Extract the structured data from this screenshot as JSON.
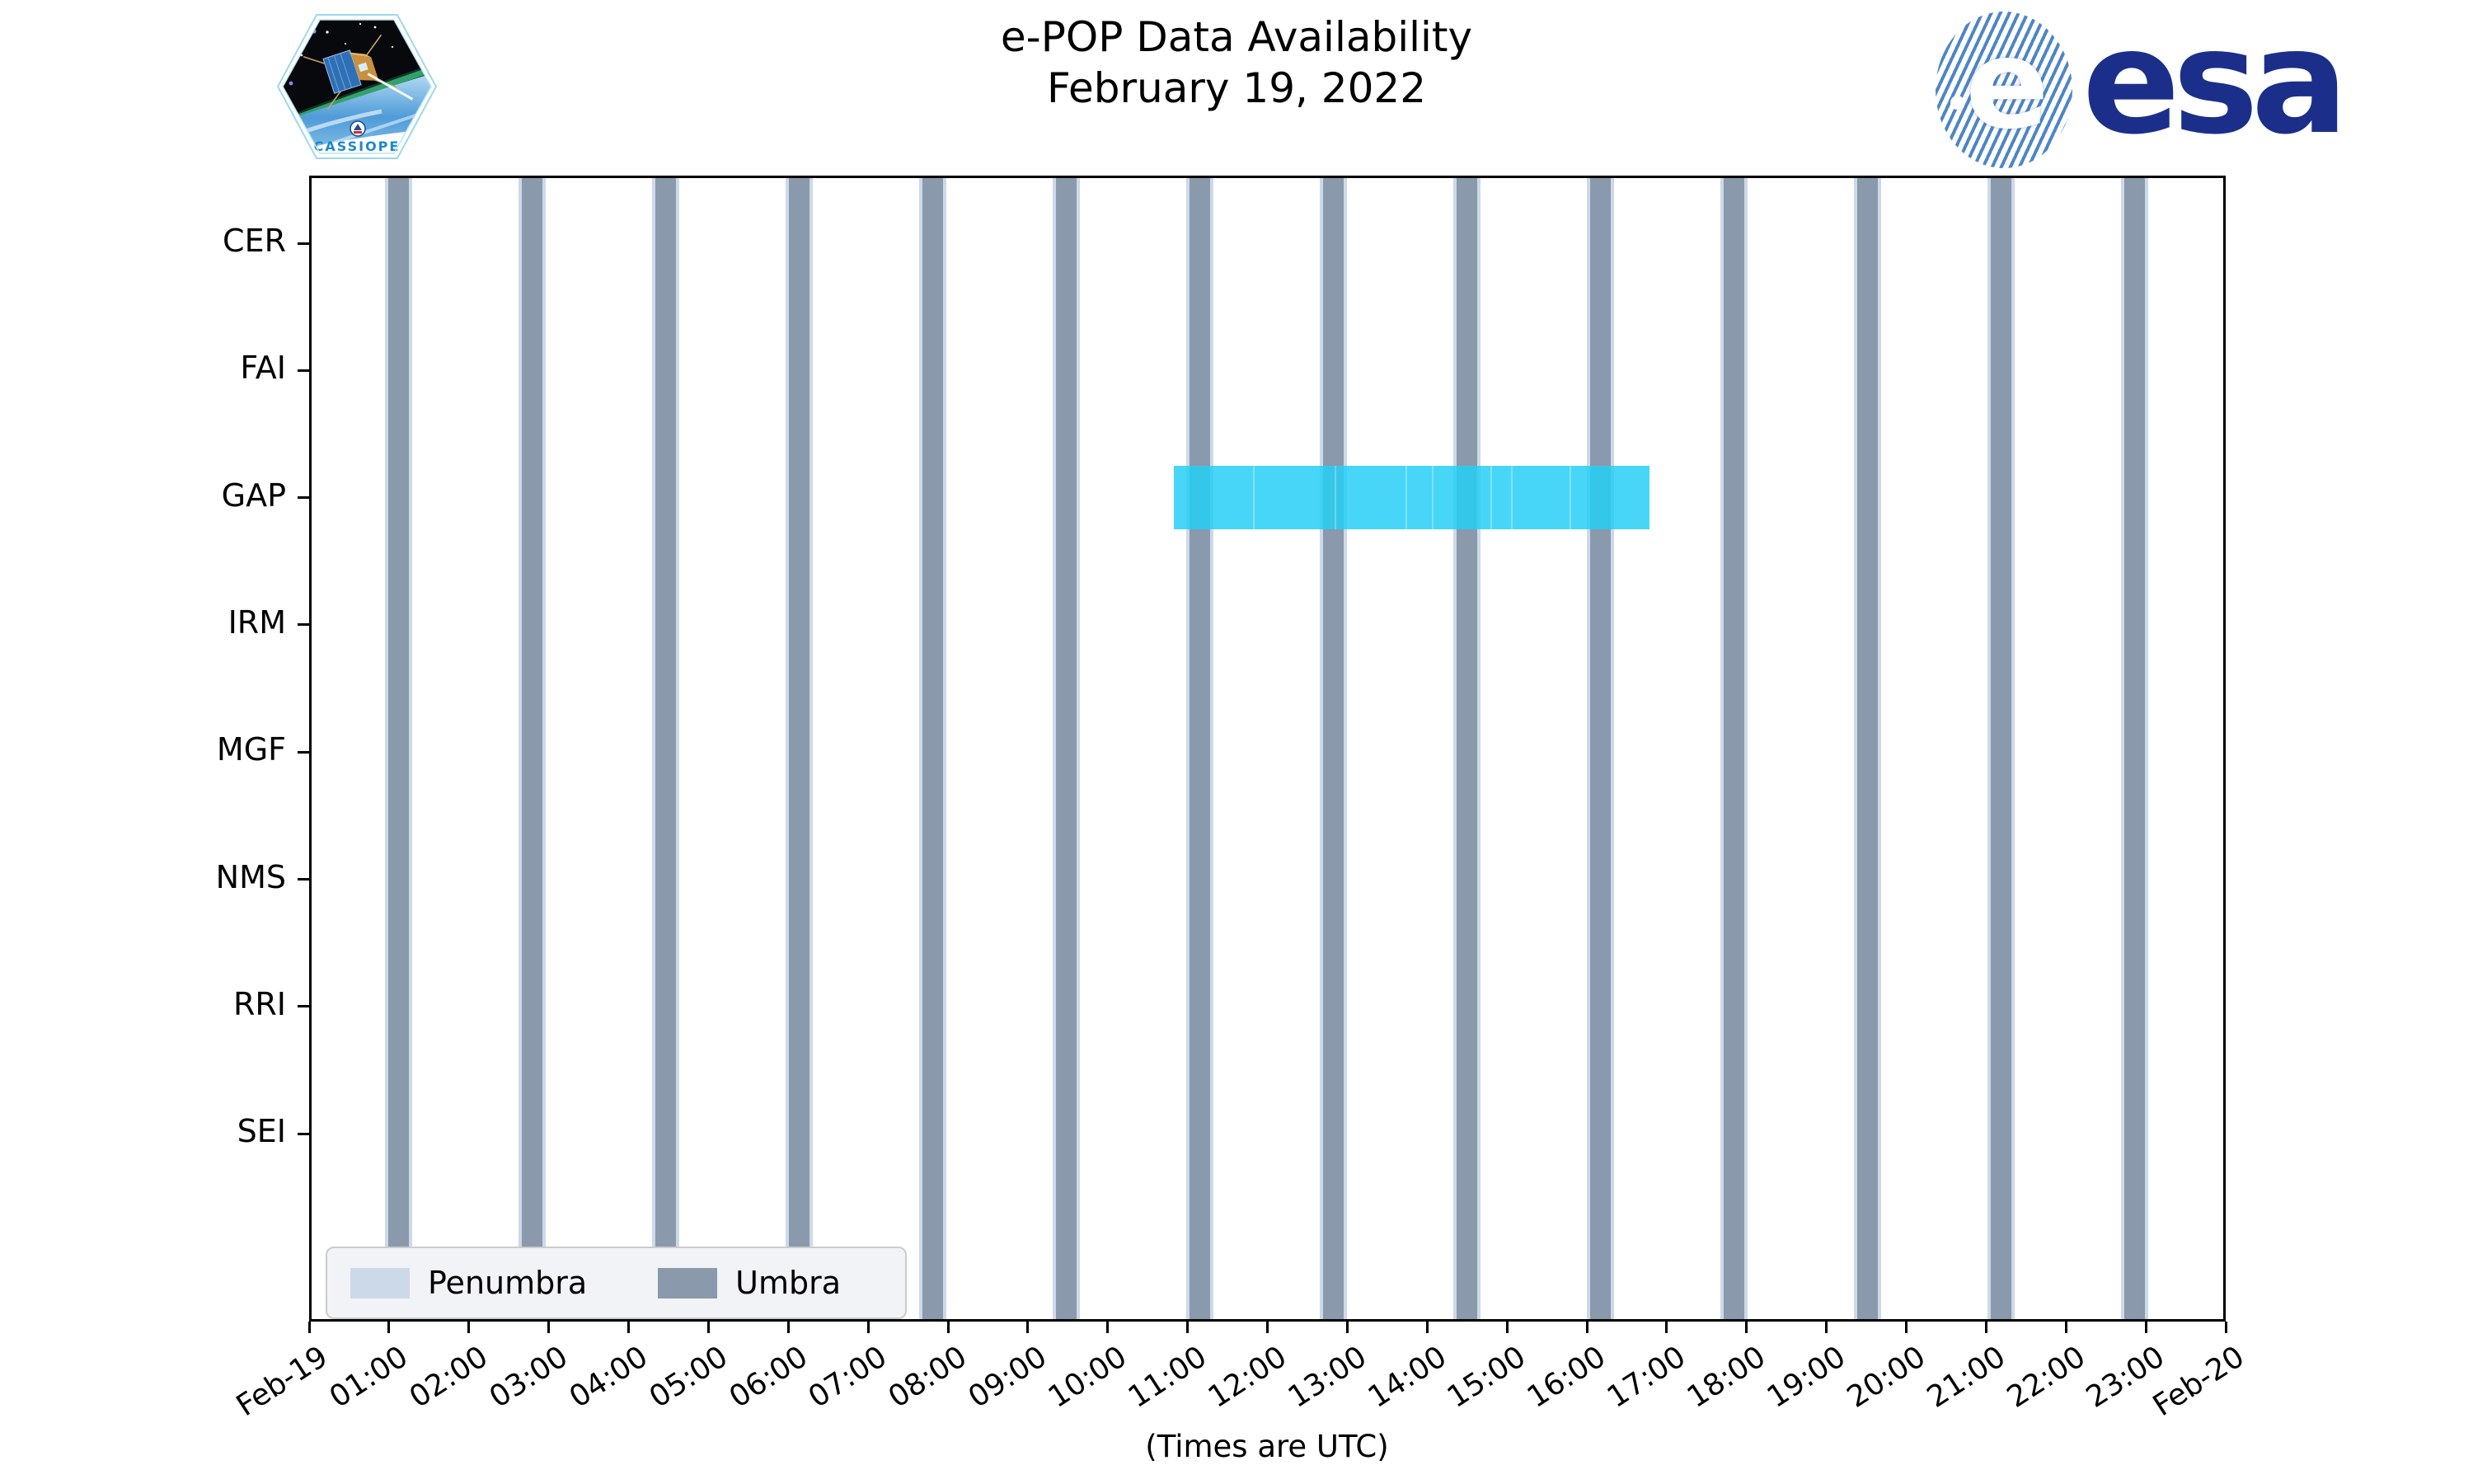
{
  "header": {
    "title": "e-POP Data Availability",
    "subtitle": "February 19, 2022",
    "patch_text": "CASSIOPE",
    "esa_ball_letter": "e",
    "esa_wordmark": "esa"
  },
  "footer": {
    "xlabel": "(Times are UTC)"
  },
  "legend": {
    "items": [
      {
        "label": "Penumbra",
        "color": "#ccd9e8"
      },
      {
        "label": "Umbra",
        "color": "#8a99ab"
      }
    ]
  },
  "chart_data": {
    "type": "bar",
    "subtype": "timeline-availability",
    "title": "e-POP Data Availability",
    "subtitle": "February 19, 2022",
    "categories": [
      "CER",
      "FAI",
      "GAP",
      "IRM",
      "MGF",
      "NMS",
      "RRI",
      "SEI"
    ],
    "xlabel": "(Times are UTC)",
    "x_range_hours": [
      0,
      24
    ],
    "x_ticks": [
      "Feb-19",
      "01:00",
      "02:00",
      "03:00",
      "04:00",
      "05:00",
      "06:00",
      "07:00",
      "08:00",
      "09:00",
      "10:00",
      "11:00",
      "12:00",
      "13:00",
      "14:00",
      "15:00",
      "16:00",
      "17:00",
      "18:00",
      "19:00",
      "20:00",
      "21:00",
      "22:00",
      "23:00",
      "Feb-20"
    ],
    "grid": false,
    "legend_position": "lower left",
    "series": [
      {
        "name": "GAP data availability",
        "instrument": "GAP",
        "start_hour": 10.83,
        "end_hour": 16.78,
        "start_utc": "10:50",
        "end_utc": "16:47",
        "color": "#27d0f6",
        "opacity": 0.85,
        "seam_hours": [
          11.82,
          12.84,
          13.73,
          14.06,
          14.79,
          15.05,
          15.78
        ]
      }
    ],
    "eclipse": {
      "first_center_hour": 1.12,
      "period_hours": 1.6722,
      "count": 14,
      "umbra_duration_hours": 0.25,
      "penumbra_fringe_hours": 0.045,
      "umbra_color": "#8a99ab",
      "penumbra_color": "#ccd9e8",
      "centers_utc": [
        "01:07",
        "02:48",
        "04:28",
        "06:08",
        "07:49",
        "09:29",
        "11:09",
        "12:50",
        "14:30",
        "16:10",
        "17:51",
        "19:31",
        "21:11",
        "22:52"
      ],
      "umbra_intervals_utc": [
        [
          "01:00",
          "01:15"
        ],
        [
          "02:40",
          "02:55"
        ],
        [
          "04:21",
          "04:36"
        ],
        [
          "06:01",
          "06:16"
        ],
        [
          "07:41",
          "07:56"
        ],
        [
          "09:21",
          "09:36"
        ],
        [
          "11:02",
          "11:17"
        ],
        [
          "12:42",
          "12:57"
        ],
        [
          "14:22",
          "14:37"
        ],
        [
          "16:03",
          "16:18"
        ],
        [
          "17:43",
          "17:58"
        ],
        [
          "19:23",
          "19:38"
        ],
        [
          "21:04",
          "21:19"
        ],
        [
          "22:44",
          "22:59"
        ]
      ]
    }
  }
}
